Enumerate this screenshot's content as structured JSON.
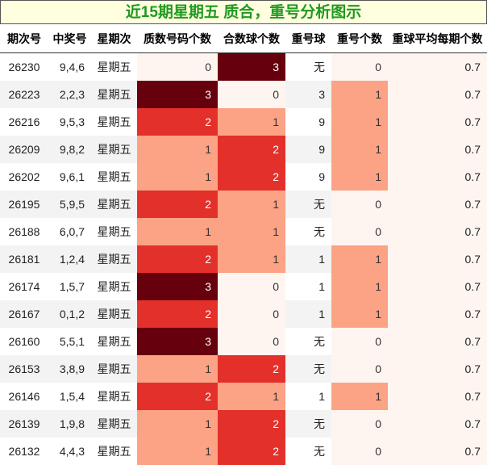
{
  "title": "近15期星期五 质合，重号分析图示",
  "headers": [
    "期次号",
    "中奖号",
    "星期次",
    "质数号码个数",
    "合数球个数",
    "重号球",
    "重号个数",
    "重球平均每期个数"
  ],
  "rows": [
    {
      "issue": "26230",
      "numbers": "9,4,6",
      "weekday": "星期五",
      "prime": "0",
      "composite": "3",
      "repeat_ball": "无",
      "repeat_count": "0",
      "avg": "0.7"
    },
    {
      "issue": "26223",
      "numbers": "2,2,3",
      "weekday": "星期五",
      "prime": "3",
      "composite": "0",
      "repeat_ball": "3",
      "repeat_count": "1",
      "avg": "0.7"
    },
    {
      "issue": "26216",
      "numbers": "9,5,3",
      "weekday": "星期五",
      "prime": "2",
      "composite": "1",
      "repeat_ball": "9",
      "repeat_count": "1",
      "avg": "0.7"
    },
    {
      "issue": "26209",
      "numbers": "9,8,2",
      "weekday": "星期五",
      "prime": "1",
      "composite": "2",
      "repeat_ball": "9",
      "repeat_count": "1",
      "avg": "0.7"
    },
    {
      "issue": "26202",
      "numbers": "9,6,1",
      "weekday": "星期五",
      "prime": "1",
      "composite": "2",
      "repeat_ball": "9",
      "repeat_count": "1",
      "avg": "0.7"
    },
    {
      "issue": "26195",
      "numbers": "5,9,5",
      "weekday": "星期五",
      "prime": "2",
      "composite": "1",
      "repeat_ball": "无",
      "repeat_count": "0",
      "avg": "0.7"
    },
    {
      "issue": "26188",
      "numbers": "6,0,7",
      "weekday": "星期五",
      "prime": "1",
      "composite": "1",
      "repeat_ball": "无",
      "repeat_count": "0",
      "avg": "0.7"
    },
    {
      "issue": "26181",
      "numbers": "1,2,4",
      "weekday": "星期五",
      "prime": "2",
      "composite": "1",
      "repeat_ball": "1",
      "repeat_count": "1",
      "avg": "0.7"
    },
    {
      "issue": "26174",
      "numbers": "1,5,7",
      "weekday": "星期五",
      "prime": "3",
      "composite": "0",
      "repeat_ball": "1",
      "repeat_count": "1",
      "avg": "0.7"
    },
    {
      "issue": "26167",
      "numbers": "0,1,2",
      "weekday": "星期五",
      "prime": "2",
      "composite": "0",
      "repeat_ball": "1",
      "repeat_count": "1",
      "avg": "0.7"
    },
    {
      "issue": "26160",
      "numbers": "5,5,1",
      "weekday": "星期五",
      "prime": "3",
      "composite": "0",
      "repeat_ball": "无",
      "repeat_count": "0",
      "avg": "0.7"
    },
    {
      "issue": "26153",
      "numbers": "3,8,9",
      "weekday": "星期五",
      "prime": "1",
      "composite": "2",
      "repeat_ball": "无",
      "repeat_count": "0",
      "avg": "0.7"
    },
    {
      "issue": "26146",
      "numbers": "1,5,4",
      "weekday": "星期五",
      "prime": "2",
      "composite": "1",
      "repeat_ball": "1",
      "repeat_count": "1",
      "avg": "0.7"
    },
    {
      "issue": "26139",
      "numbers": "1,9,8",
      "weekday": "星期五",
      "prime": "1",
      "composite": "2",
      "repeat_ball": "无",
      "repeat_count": "0",
      "avg": "0.7"
    },
    {
      "issue": "26132",
      "numbers": "4,4,3",
      "weekday": "星期五",
      "prime": "1",
      "composite": "2",
      "repeat_ball": "无",
      "repeat_count": "0",
      "avg": "0.7"
    }
  ],
  "colors": {
    "title_text": "#1f9a1f",
    "title_bg": "#ffffe0",
    "heat_0": "#fff5f0",
    "heat_1": "#fca385",
    "heat_2": "#e3302a",
    "heat_3": "#67000d"
  }
}
